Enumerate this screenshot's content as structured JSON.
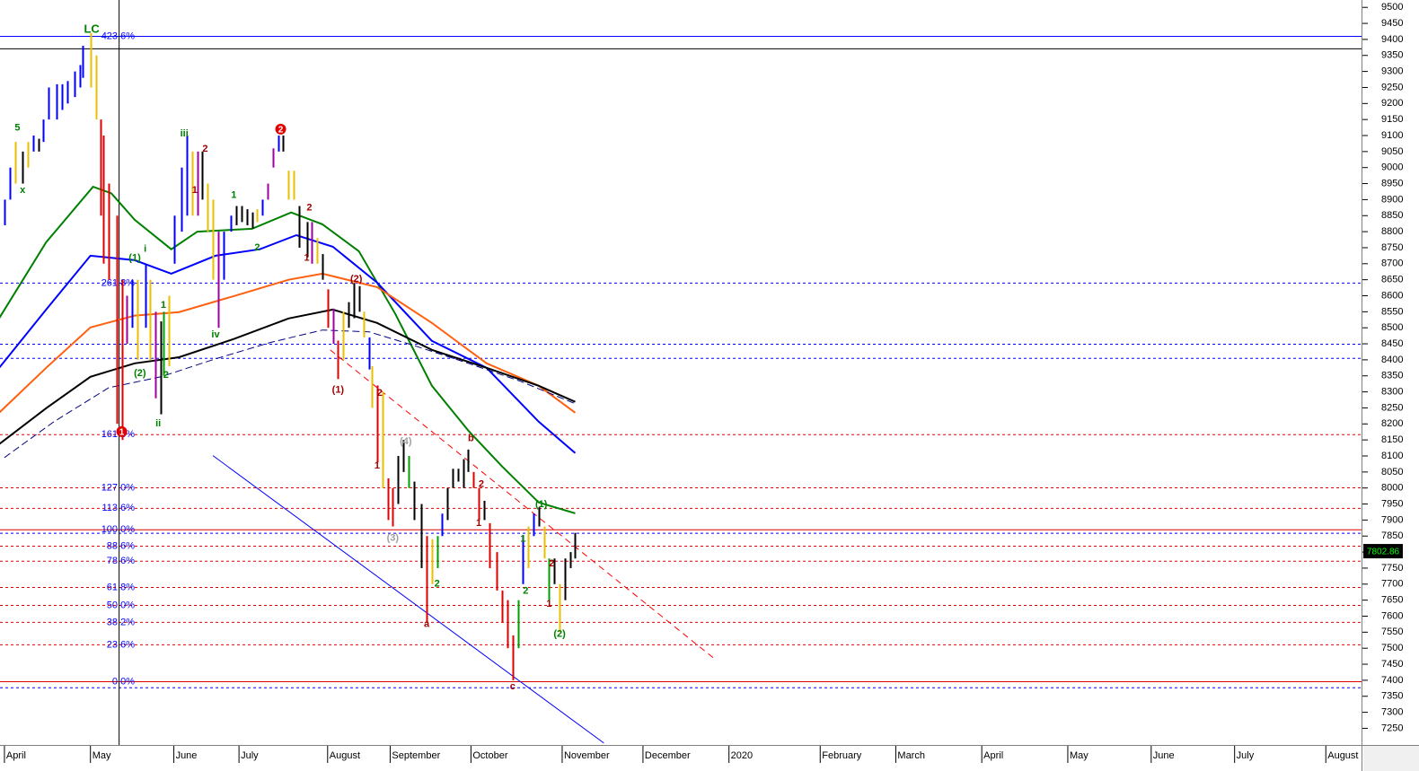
{
  "chart_data": {
    "type": "ohlc",
    "xlim": [
      -1.7,
      520.7
    ],
    "ylim": [
      7198,
      9523
    ],
    "xticks": [
      {
        "value": 0,
        "label": "April"
      },
      {
        "value": 33,
        "label": "May"
      },
      {
        "value": 65,
        "label": "June"
      },
      {
        "value": 90,
        "label": "July"
      },
      {
        "value": 124,
        "label": "August"
      },
      {
        "value": 148,
        "label": "September"
      },
      {
        "value": 179,
        "label": "October"
      },
      {
        "value": 214,
        "label": "November"
      },
      {
        "value": 245,
        "label": "December"
      },
      {
        "value": 278,
        "label": "2020"
      },
      {
        "value": 313,
        "label": "February"
      },
      {
        "value": 342,
        "label": "March"
      },
      {
        "value": 375,
        "label": "April"
      },
      {
        "value": 408,
        "label": "May"
      },
      {
        "value": 440,
        "label": "June"
      },
      {
        "value": 472,
        "label": "July"
      },
      {
        "value": 507,
        "label": "August"
      }
    ],
    "yticks": [
      7250,
      7300,
      7350,
      7400,
      7450,
      7500,
      7550,
      7600,
      7650,
      7700,
      7750,
      7800,
      7850,
      7900,
      7950,
      8000,
      8050,
      8100,
      8150,
      8200,
      8250,
      8300,
      8350,
      8400,
      8450,
      8500,
      8550,
      8600,
      8650,
      8700,
      8750,
      8800,
      8850,
      8900,
      8950,
      9000,
      9050,
      9100,
      9150,
      9200,
      9250,
      9300,
      9350,
      9400,
      9450,
      9500
    ],
    "last_price": 7802.86,
    "bars": {
      "x": [
        0,
        2,
        4,
        7,
        9,
        11,
        13,
        15,
        17,
        20,
        22,
        24,
        27,
        29,
        30,
        33,
        35,
        37,
        38,
        40,
        43,
        45,
        47,
        49,
        51,
        54,
        56,
        58,
        60,
        61,
        63,
        65,
        68,
        70,
        72,
        74,
        76,
        78,
        80,
        82,
        84,
        87,
        89,
        91,
        93,
        95,
        97,
        99,
        101,
        103,
        105,
        107,
        109,
        111,
        113,
        116,
        118,
        120,
        122,
        124,
        126,
        128,
        130,
        132,
        134,
        136,
        138,
        140,
        141,
        143,
        145,
        147,
        149,
        151,
        153,
        155,
        157,
        160,
        162,
        164,
        166,
        168,
        170,
        172,
        174,
        176,
        178,
        180,
        182,
        184,
        186,
        189,
        191,
        193,
        195,
        197,
        199,
        201,
        203,
        205,
        207,
        209,
        211,
        213,
        215,
        217,
        219
      ],
      "high": [
        8900,
        9000,
        9080,
        9050,
        9080,
        9100,
        9090,
        9150,
        9250,
        9260,
        9260,
        9270,
        9300,
        9320,
        9380,
        9420,
        9350,
        9150,
        9100,
        8950,
        8850,
        8650,
        8600,
        8650,
        8650,
        8700,
        8650,
        8550,
        8520,
        8550,
        8600,
        8850,
        9000,
        9100,
        9050,
        9050,
        9050,
        8950,
        8900,
        8800,
        8800,
        8850,
        8880,
        8880,
        8870,
        8860,
        8870,
        8900,
        8950,
        9060,
        9100,
        9100,
        8990,
        8990,
        8880,
        8830,
        8830,
        8780,
        8730,
        8620,
        8560,
        8460,
        8550,
        8580,
        8640,
        8630,
        8550,
        8470,
        8380,
        8320,
        8300,
        8030,
        8000,
        8100,
        8150,
        8100,
        8020,
        7950,
        7850,
        7840,
        7850,
        7920,
        8000,
        8060,
        8060,
        8090,
        8120,
        8050,
        8000,
        7960,
        7890,
        7800,
        7680,
        7650,
        7540,
        7650,
        7850,
        7880,
        7920,
        7940,
        7880,
        7780,
        7780,
        7700,
        7780,
        7800,
        7860
      ],
      "low": [
        8820,
        8900,
        8950,
        8950,
        9000,
        9050,
        9050,
        9080,
        9150,
        9150,
        9180,
        9200,
        9220,
        9250,
        9280,
        9250,
        9150,
        8850,
        8700,
        8650,
        8200,
        8150,
        8450,
        8500,
        8400,
        8500,
        8400,
        8280,
        8230,
        8350,
        8380,
        8700,
        8800,
        8850,
        8850,
        8850,
        8900,
        8800,
        8650,
        8500,
        8650,
        8800,
        8820,
        8830,
        8820,
        8810,
        8830,
        8850,
        8900,
        9000,
        9050,
        9050,
        8900,
        8900,
        8750,
        8720,
        8700,
        8700,
        8650,
        8500,
        8450,
        8340,
        8400,
        8500,
        8530,
        8550,
        8470,
        8370,
        8250,
        8080,
        8000,
        7900,
        7880,
        7950,
        8050,
        8000,
        7900,
        7750,
        7580,
        7700,
        7750,
        7850,
        7900,
        8000,
        8020,
        8000,
        8050,
        8000,
        7900,
        7900,
        7750,
        7680,
        7580,
        7500,
        7400,
        7500,
        7700,
        7750,
        7850,
        7880,
        7780,
        7650,
        7700,
        7550,
        7650,
        7750,
        7780
      ],
      "colors": [
        "#0000ff",
        "#0000ff",
        "#e8c000",
        "#000000",
        "#e8c000",
        "#0000ff",
        "#000000",
        "#0000ff",
        "#0000ff",
        "#0000ff",
        "#0000ff",
        "#0000ff",
        "#0000ff",
        "#0000ff",
        "#0000ff",
        "#e8c000",
        "#e8c000",
        "#e00000",
        "#e00000",
        "#e00000",
        "#e00000",
        "#e00000",
        "#a000a0",
        "#0000ff",
        "#e8c000",
        "#0000ff",
        "#e8c000",
        "#a000a0",
        "#000000",
        "#00a000",
        "#e8c000",
        "#0000ff",
        "#0000ff",
        "#0000ff",
        "#e8c000",
        "#a000a0",
        "#000000",
        "#e8c000",
        "#e8c000",
        "#a000a0",
        "#0000ff",
        "#0000ff",
        "#000000",
        "#000000",
        "#000000",
        "#000000",
        "#e8c000",
        "#0000ff",
        "#a000a0",
        "#a000a0",
        "#0000ff",
        "#000000",
        "#e8c000",
        "#e8c000",
        "#000000",
        "#000000",
        "#a000a0",
        "#e8c000",
        "#000000",
        "#e00000",
        "#a000a0",
        "#e00000",
        "#e8c000",
        "#000000",
        "#000000",
        "#000000",
        "#e8c000",
        "#0000ff",
        "#e8c000",
        "#e00000",
        "#e8c000",
        "#e00000",
        "#e00000",
        "#000000",
        "#000000",
        "#00a000",
        "#000000",
        "#000000",
        "#e00000",
        "#e8c000",
        "#00a000",
        "#0000ff",
        "#000000",
        "#000000",
        "#000000",
        "#000000",
        "#000000",
        "#e00000",
        "#e00000",
        "#000000",
        "#e00000",
        "#e00000",
        "#e00000",
        "#e00000",
        "#e00000",
        "#00a000",
        "#0000ff",
        "#e8c000",
        "#0000ff",
        "#000000",
        "#e8c000",
        "#00a000",
        "#000000",
        "#e8c000",
        "#000000",
        "#000000",
        "#000000"
      ]
    },
    "series": [
      {
        "color": "#008000",
        "width": 2,
        "x": [
          -2,
          16,
          34,
          41,
          50,
          64,
          74,
          95,
          110,
          122,
          136,
          150,
          164,
          178,
          191,
          205,
          219
        ],
        "values": [
          8530,
          8767,
          8940,
          8920,
          8837,
          8745,
          8800,
          8809,
          8860,
          8823,
          8739,
          8543,
          8319,
          8179,
          8067,
          7955,
          7921
        ]
      },
      {
        "color": "#0000ff",
        "width": 2,
        "x": [
          -2,
          16,
          33,
          50,
          64,
          81,
          98,
          112,
          126,
          143,
          164,
          185,
          205,
          219
        ],
        "values": [
          8375,
          8557,
          8725,
          8711,
          8669,
          8725,
          8745,
          8789,
          8753,
          8641,
          8459,
          8375,
          8207,
          8109
        ]
      },
      {
        "color": "#ff6010",
        "width": 2,
        "x": [
          -2,
          16,
          33,
          50,
          67,
          88,
          109,
          122,
          143,
          164,
          185,
          205,
          219
        ],
        "values": [
          8235,
          8375,
          8501,
          8538,
          8549,
          8599,
          8650,
          8669,
          8627,
          8515,
          8389,
          8319,
          8235
        ]
      },
      {
        "color": "#000000",
        "width": 2,
        "x": [
          -2,
          16,
          33,
          50,
          67,
          88,
          109,
          126,
          143,
          164,
          185,
          205,
          219
        ],
        "values": [
          8137,
          8249,
          8347,
          8389,
          8408,
          8465,
          8529,
          8557,
          8515,
          8431,
          8375,
          8319,
          8269
        ]
      },
      {
        "color": "#000080",
        "width": 1,
        "dashed": true,
        "x": [
          0,
          19,
          40,
          60,
          81,
          102,
          122,
          140,
          157,
          178,
          198,
          219
        ],
        "values": [
          8095,
          8207,
          8313,
          8347,
          8403,
          8454,
          8493,
          8487,
          8445,
          8389,
          8333,
          8263
        ]
      }
    ],
    "levels": [
      {
        "value": 9411,
        "label": "423.6%",
        "color": "#0000ff",
        "style": "solid"
      },
      {
        "value": 9372,
        "color": "#000000",
        "style": "solid"
      },
      {
        "value": 8641,
        "label": "261.8%",
        "color": "#0000ff",
        "style": "dashed"
      },
      {
        "value": 8450,
        "color": "#0000ff",
        "style": "dashed"
      },
      {
        "value": 8406,
        "color": "#0000ff",
        "style": "dashed"
      },
      {
        "value": 8168,
        "label": "161.8%",
        "color": "#e00000",
        "style": "dashed"
      },
      {
        "value": 8002,
        "label": "127.0%",
        "color": "#e00000",
        "style": "dashed"
      },
      {
        "value": 7938,
        "label": "113.6%",
        "color": "#e00000",
        "style": "dashed"
      },
      {
        "value": 7871,
        "label": "100.0%",
        "color": "#e00000",
        "style": "solid"
      },
      {
        "value": 7860,
        "color": "#0000ff",
        "style": "dashed"
      },
      {
        "value": 7820,
        "label": "88.6%",
        "color": "#e00000",
        "style": "dashed"
      },
      {
        "value": 7773,
        "label": "78.6%",
        "color": "#e00000",
        "style": "dashed"
      },
      {
        "value": 7691,
        "label": "61.8%",
        "color": "#e00000",
        "style": "dashed"
      },
      {
        "value": 7635,
        "label": "50.0%",
        "color": "#e00000",
        "style": "dashed"
      },
      {
        "value": 7582,
        "label": "38.2%",
        "color": "#e00000",
        "style": "dashed"
      },
      {
        "value": 7512,
        "label": "23.6%",
        "color": "#e00000",
        "style": "dashed"
      },
      {
        "value": 7397,
        "label": "0.0%",
        "color": "#e00000",
        "style": "solid"
      },
      {
        "value": 7378,
        "color": "#0000ff",
        "style": "dashed"
      }
    ],
    "trendlines": [
      {
        "x": [
          80,
          230
        ],
        "values": [
          8101,
          7204
        ],
        "color": "#0000ff",
        "style": "solid"
      },
      {
        "x": [
          125,
          272
        ],
        "values": [
          8431,
          7470
        ],
        "color": "#ff0000",
        "style": "dashed"
      }
    ],
    "vline_x": 44,
    "annotations": [
      {
        "text": "LC",
        "x": 33.5,
        "y": 9431,
        "color": "#008000"
      },
      {
        "text": "5",
        "x": 5,
        "y": 9123,
        "color": "#008000"
      },
      {
        "text": "x",
        "x": 7,
        "y": 8929,
        "color": "#008000"
      },
      {
        "text": "iii",
        "x": 69,
        "y": 9106,
        "color": "#008000"
      },
      {
        "text": "2",
        "x": 77,
        "y": 9058,
        "color": "#a00000"
      },
      {
        "text": "1",
        "x": 73,
        "y": 8929,
        "color": "#a00000"
      },
      {
        "text": "2",
        "x": 106,
        "y": 9120,
        "color": "#e00000",
        "circle": true
      },
      {
        "text": "1",
        "x": 88,
        "y": 8913,
        "color": "#008000"
      },
      {
        "text": "2",
        "x": 97,
        "y": 8750,
        "color": "#008000"
      },
      {
        "text": "i",
        "x": 54,
        "y": 8745,
        "color": "#008000"
      },
      {
        "text": "(1)",
        "x": 50,
        "y": 8717,
        "color": "#008000"
      },
      {
        "text": "1",
        "x": 61,
        "y": 8571,
        "color": "#008000"
      },
      {
        "text": "(2)",
        "x": 52,
        "y": 8358,
        "color": "#008000"
      },
      {
        "text": "2",
        "x": 62,
        "y": 8352,
        "color": "#008000"
      },
      {
        "text": "ii",
        "x": 59,
        "y": 8201,
        "color": "#008000"
      },
      {
        "text": "iv",
        "x": 81,
        "y": 8478,
        "color": "#008000"
      },
      {
        "text": "1",
        "x": 45,
        "y": 8176,
        "color": "#e00000",
        "circle": true
      },
      {
        "text": "2",
        "x": 117,
        "y": 8874,
        "color": "#a00000"
      },
      {
        "text": "1",
        "x": 116,
        "y": 8717,
        "color": "#a00000"
      },
      {
        "text": "(2)",
        "x": 135,
        "y": 8652,
        "color": "#a00000"
      },
      {
        "text": "(1)",
        "x": 128,
        "y": 8305,
        "color": "#a00000"
      },
      {
        "text": "2",
        "x": 144,
        "y": 8296,
        "color": "#a00000"
      },
      {
        "text": "1",
        "x": 143,
        "y": 8069,
        "color": "#a00000"
      },
      {
        "text": "(4)",
        "x": 154,
        "y": 8145,
        "color": "#a0a0a0"
      },
      {
        "text": "(3)",
        "x": 149,
        "y": 7843,
        "color": "#a0a0a0"
      },
      {
        "text": "b",
        "x": 179,
        "y": 8154,
        "color": "#a00000"
      },
      {
        "text": "2",
        "x": 183,
        "y": 8011,
        "color": "#a00000"
      },
      {
        "text": "1",
        "x": 182,
        "y": 7890,
        "color": "#a00000"
      },
      {
        "text": "2",
        "x": 166,
        "y": 7700,
        "color": "#008000"
      },
      {
        "text": "a",
        "x": 162,
        "y": 7574,
        "color": "#a00000"
      },
      {
        "text": "(1)",
        "x": 206,
        "y": 7949,
        "color": "#008000"
      },
      {
        "text": "1",
        "x": 199,
        "y": 7840,
        "color": "#008000"
      },
      {
        "text": "2",
        "x": 210,
        "y": 7764,
        "color": "#a00000"
      },
      {
        "text": "2",
        "x": 200,
        "y": 7678,
        "color": "#008000"
      },
      {
        "text": "1",
        "x": 209,
        "y": 7638,
        "color": "#a00000"
      },
      {
        "text": "(2)",
        "x": 213,
        "y": 7543,
        "color": "#008000"
      },
      {
        "text": "c",
        "x": 195,
        "y": 7380,
        "color": "#a00000"
      }
    ]
  }
}
